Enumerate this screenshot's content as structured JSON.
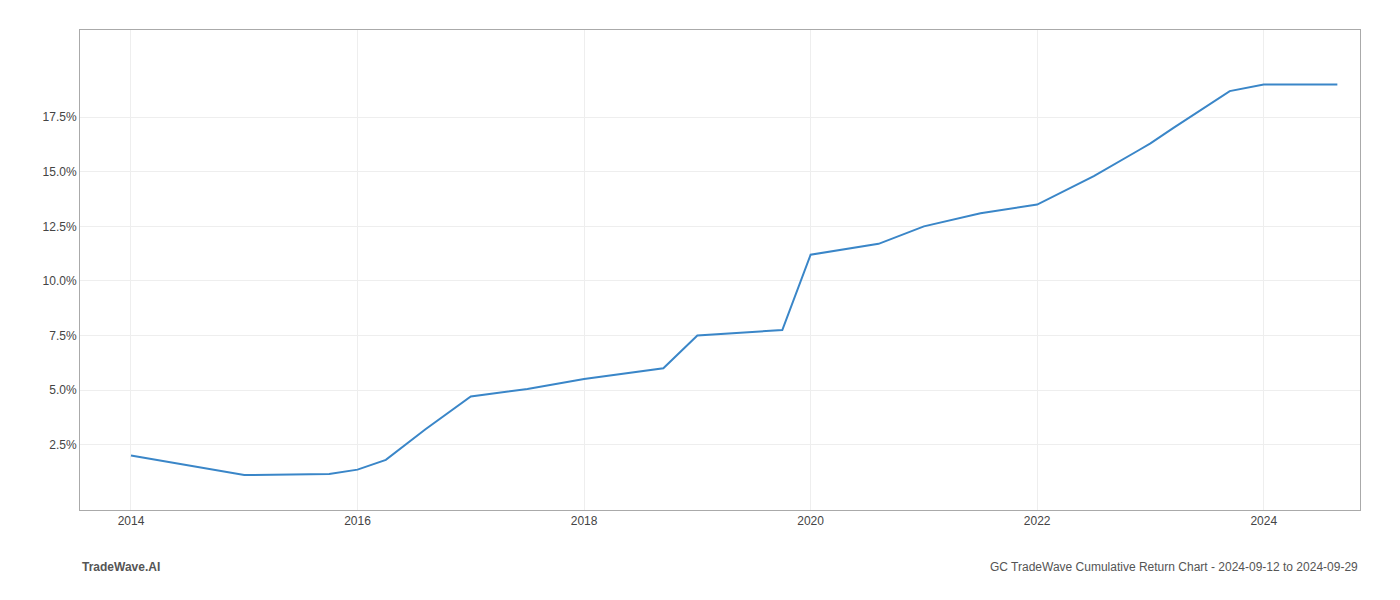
{
  "chart_data": {
    "type": "line",
    "x": [
      2014.0,
      2014.75,
      2015.0,
      2015.75,
      2016.0,
      2016.25,
      2016.6,
      2017.0,
      2017.5,
      2018.0,
      2018.3,
      2018.7,
      2019.0,
      2019.5,
      2019.75,
      2020.0,
      2020.25,
      2020.6,
      2021.0,
      2021.5,
      2022.0,
      2022.5,
      2022.9,
      2023.0,
      2023.2,
      2023.7,
      2024.0,
      2024.65
    ],
    "values": [
      2.0,
      1.3,
      1.1,
      1.15,
      1.35,
      1.8,
      3.2,
      4.7,
      5.05,
      5.5,
      5.7,
      6.0,
      7.5,
      7.65,
      7.75,
      11.2,
      11.4,
      11.7,
      12.5,
      13.1,
      13.5,
      14.8,
      16.0,
      16.3,
      17.0,
      18.7,
      19.0,
      19.0
    ],
    "color": "#3a86c8",
    "xlim": [
      2013.55,
      2024.85
    ],
    "ylim": [
      -0.5,
      21.5
    ],
    "xticks": [
      2014,
      2016,
      2018,
      2020,
      2022,
      2024
    ],
    "yticks": [
      {
        "value": 2.5,
        "label": "2.5%"
      },
      {
        "value": 5.0,
        "label": "5.0%"
      },
      {
        "value": 7.5,
        "label": "7.5%"
      },
      {
        "value": 10.0,
        "label": "10.0%"
      },
      {
        "value": 12.5,
        "label": "12.5%"
      },
      {
        "value": 15.0,
        "label": "15.0%"
      },
      {
        "value": 17.5,
        "label": "17.5%"
      }
    ],
    "grid": true,
    "annotations": [
      "TradeWave.AI",
      "GC TradeWave Cumulative Return Chart - 2024-09-12 to 2024-09-29"
    ]
  }
}
